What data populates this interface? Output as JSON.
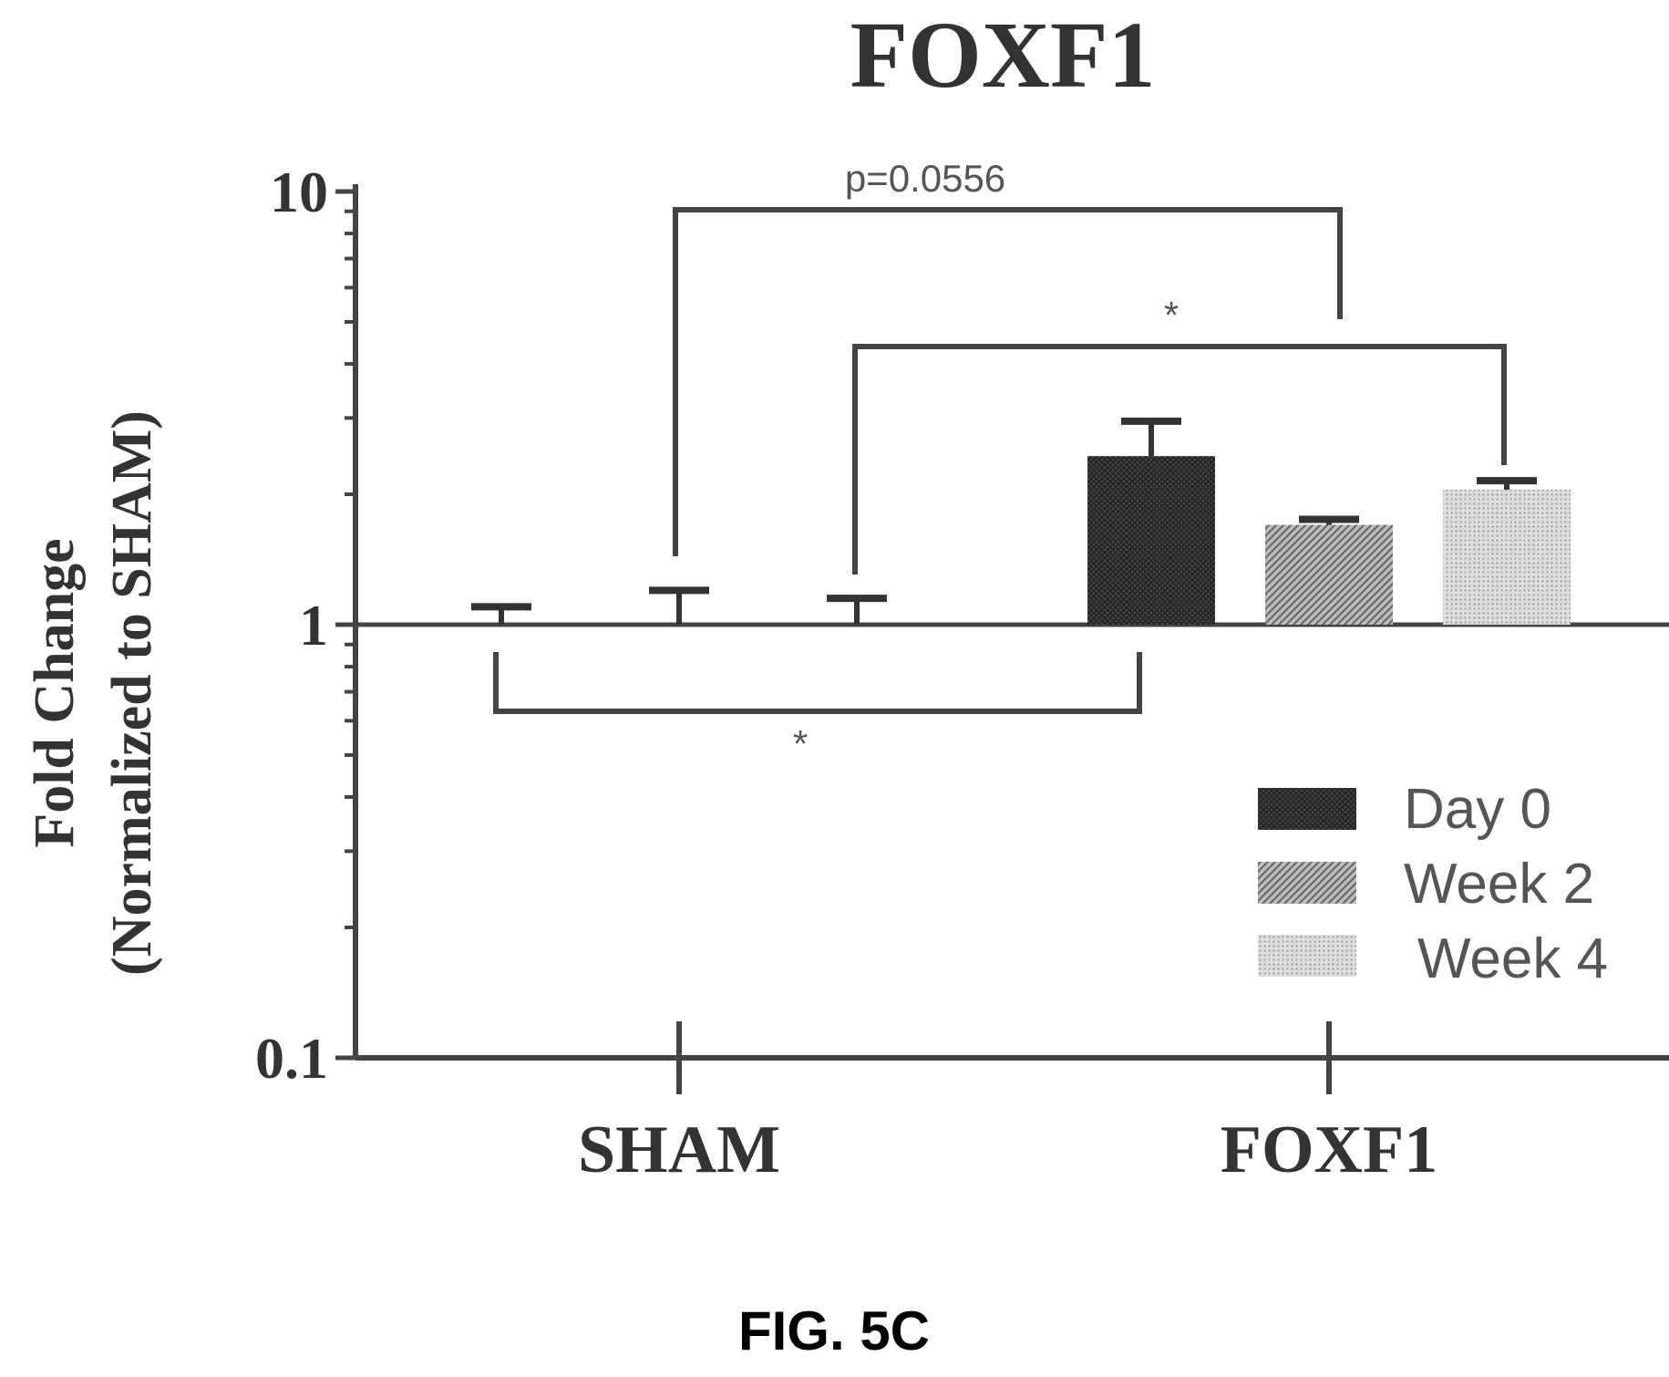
{
  "figure_label": "FIG. 5C",
  "chart_data": {
    "type": "bar",
    "title": "FOXF1",
    "ylabel_line1": "Fold Change",
    "ylabel_line2": "(Normalized to SHAM)",
    "y_scale": "log",
    "ylim": [
      0.1,
      10
    ],
    "y_ticks": [
      "10",
      "1",
      "0.1"
    ],
    "baseline": 1,
    "categories": [
      "SHAM",
      "FOXF1"
    ],
    "series": [
      {
        "name": "Day 0",
        "pattern": "dark-crosshatch",
        "values": [
          1.0,
          2.45
        ],
        "errors": [
          0.1,
          0.5
        ]
      },
      {
        "name": "Week 2",
        "pattern": "diagonal-hatch",
        "values": [
          1.0,
          1.7
        ],
        "errors": [
          0.2,
          0.05
        ]
      },
      {
        "name": "Week 4",
        "pattern": "light-dots",
        "values": [
          1.0,
          2.05
        ],
        "errors": [
          0.15,
          0.1
        ]
      }
    ],
    "legend_position": "bottom-right",
    "annotations": {
      "top_bracket": "p=0.0556",
      "middle_bracket": "*",
      "bottom_bracket": "*"
    }
  }
}
